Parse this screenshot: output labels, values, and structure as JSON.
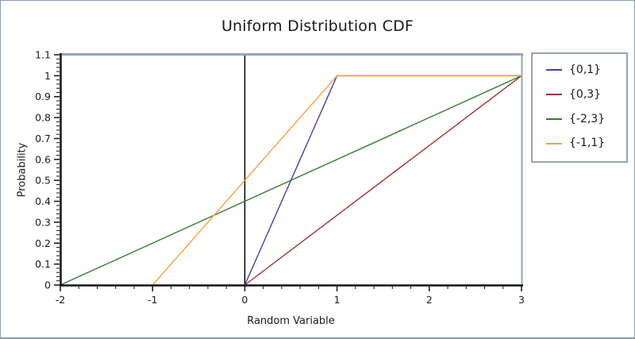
{
  "colors": {
    "axis": "#141414",
    "frame": "#97a5b6",
    "reference_line": "#000000",
    "tick_text": "#1b1b1b",
    "page_border": "#8d9cae",
    "background": "#ffffff"
  },
  "chart_data": {
    "type": "line",
    "title": "Uniform Distribution CDF",
    "xlabel": "Random Variable",
    "ylabel": "Probability",
    "xlim": [
      -2,
      3
    ],
    "ylim": [
      0,
      1.1
    ],
    "grid": false,
    "legend_position": "right-outside",
    "reference_line_x": 0,
    "x_ticks": {
      "values": [
        -2,
        -1,
        0,
        1,
        2,
        3
      ],
      "labels": [
        "-2",
        "-1",
        "0",
        "1",
        "2",
        "3"
      ],
      "minor_step": 0.2
    },
    "y_ticks": {
      "values": [
        0,
        0.1,
        0.2,
        0.3,
        0.4,
        0.5,
        0.6,
        0.7,
        0.8,
        0.9,
        1,
        1.1
      ],
      "labels": [
        "0",
        "0.1",
        "0.2",
        "0.3",
        "0.4",
        "0.5",
        "0.6",
        "0.7",
        "0.8",
        "0.9",
        "1",
        "1.1"
      ],
      "minor_step": 0.02
    },
    "series": [
      {
        "name": "{0,1}",
        "color": "#3f3fad",
        "points": [
          [
            0,
            0
          ],
          [
            1,
            1
          ],
          [
            3,
            1
          ]
        ]
      },
      {
        "name": "{0,3}",
        "color": "#a03232",
        "points": [
          [
            0,
            0
          ],
          [
            3,
            1
          ]
        ]
      },
      {
        "name": "{-2,3}",
        "color": "#2d7f2d",
        "points": [
          [
            -2,
            0
          ],
          [
            3,
            1
          ]
        ]
      },
      {
        "name": "{-1,1}",
        "color": "#ff9e3c",
        "points": [
          [
            -1,
            0
          ],
          [
            1,
            1
          ],
          [
            3,
            1
          ]
        ]
      }
    ]
  }
}
